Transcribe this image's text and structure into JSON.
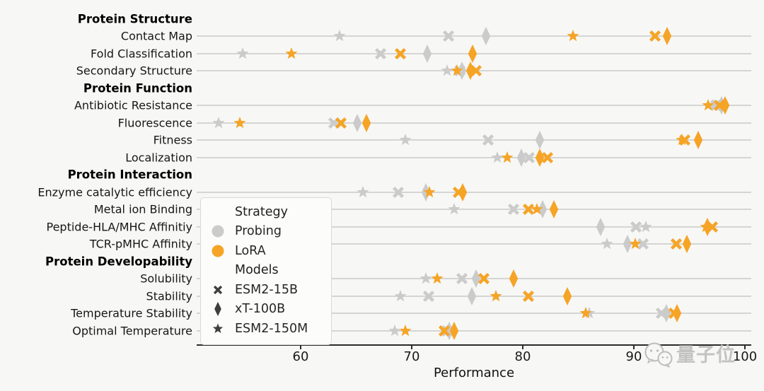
{
  "figure": {
    "background": "#f7f7f5",
    "watermark_text": "量子位"
  },
  "legend": {
    "strategy_title": "Strategy",
    "probing_label": "Probing",
    "lora_label": "LoRA",
    "models_title": "Models",
    "esm2_15b_label": "ESM2-15B",
    "xt_100b_label": "xT-100B",
    "esm2_150m_label": "ESM2-150M"
  },
  "chart_data": {
    "type": "scatter",
    "xlabel": "Performance",
    "x_ticks": [
      60,
      70,
      80,
      90,
      100
    ],
    "x_range": [
      50.6,
      100.7
    ],
    "grid": "horizontal-category-lines",
    "legend_position": "center-left",
    "strategies": [
      {
        "name": "Probing",
        "color": "#cbcbcb"
      },
      {
        "name": "LoRA",
        "color": "#f6a426"
      }
    ],
    "models": [
      {
        "name": "ESM2-15B",
        "marker": "x"
      },
      {
        "name": "xT-100B",
        "marker": "diamond"
      },
      {
        "name": "ESM2-150M",
        "marker": "star"
      }
    ],
    "rows": [
      {
        "label": "Protein Structure",
        "header": true
      },
      {
        "label": "Contact Map",
        "header": false,
        "probing": {
          "ESM2-15B": 73.3,
          "xT-100B": 76.7,
          "ESM2-150M": 63.5
        },
        "lora": {
          "ESM2-15B": 91.9,
          "xT-100B": 93.0,
          "ESM2-150M": 84.5
        }
      },
      {
        "label": "Fold Classification",
        "header": false,
        "probing": {
          "ESM2-15B": 67.2,
          "xT-100B": 71.4,
          "ESM2-150M": 54.8
        },
        "lora": {
          "ESM2-15B": 69.0,
          "xT-100B": 75.5,
          "ESM2-150M": 59.2
        }
      },
      {
        "label": "Secondary Structure",
        "header": false,
        "probing": {
          "ESM2-15B": 74.3,
          "xT-100B": 74.5,
          "ESM2-150M": 73.2
        },
        "lora": {
          "ESM2-15B": 75.8,
          "xT-100B": 75.3,
          "ESM2-150M": 74.1
        }
      },
      {
        "label": "Protein Function",
        "header": true
      },
      {
        "label": "Antibiotic Resistance",
        "header": false,
        "probing": {
          "ESM2-15B": 97.4,
          "xT-100B": 97.9,
          "ESM2-150M": 97.2
        },
        "lora": {
          "ESM2-15B": 97.7,
          "xT-100B": 98.2,
          "ESM2-150M": 96.7
        }
      },
      {
        "label": "Fluorescence",
        "header": false,
        "probing": {
          "ESM2-15B": 63.0,
          "xT-100B": 65.1,
          "ESM2-150M": 52.6
        },
        "lora": {
          "ESM2-15B": 63.6,
          "xT-100B": 65.9,
          "ESM2-150M": 54.5
        }
      },
      {
        "label": "Fitness",
        "header": false,
        "probing": {
          "ESM2-15B": 76.9,
          "xT-100B": 81.5,
          "ESM2-150M": 69.4
        },
        "lora": {
          "ESM2-15B": 94.6,
          "xT-100B": 95.8,
          "ESM2-150M": 94.3
        }
      },
      {
        "label": "Localization",
        "header": false,
        "probing": {
          "ESM2-15B": 80.6,
          "xT-100B": 79.9,
          "ESM2-150M": 77.7
        },
        "lora": {
          "ESM2-15B": 82.2,
          "xT-100B": 81.5,
          "ESM2-150M": 78.6
        }
      },
      {
        "label": "Protein Interaction",
        "header": true
      },
      {
        "label": "Enzyme catalytic efficiency",
        "header": false,
        "probing": {
          "ESM2-15B": 68.8,
          "xT-100B": 71.3,
          "ESM2-150M": 65.6
        },
        "lora": {
          "ESM2-15B": 74.2,
          "xT-100B": 74.6,
          "ESM2-150M": 71.6
        }
      },
      {
        "label": "Metal ion Binding",
        "header": false,
        "probing": {
          "ESM2-15B": 79.2,
          "xT-100B": 81.8,
          "ESM2-150M": 73.8
        },
        "lora": {
          "ESM2-15B": 80.5,
          "xT-100B": 82.8,
          "ESM2-150M": 81.3
        }
      },
      {
        "label": "Peptide-HLA/MHC Affinitiy",
        "header": false,
        "probing": {
          "ESM2-15B": 90.2,
          "xT-100B": 87.0,
          "ESM2-150M": 91.1
        },
        "lora": {
          "ESM2-15B": 97.1,
          "xT-100B": 96.6,
          "ESM2-150M": 96.5
        }
      },
      {
        "label": "TCR-pMHC Affinity",
        "header": false,
        "probing": {
          "ESM2-15B": 90.8,
          "xT-100B": 89.4,
          "ESM2-150M": 87.6
        },
        "lora": {
          "ESM2-15B": 93.8,
          "xT-100B": 94.8,
          "ESM2-150M": 90.1
        }
      },
      {
        "label": "Protein Developability",
        "header": true
      },
      {
        "label": "Solubility",
        "header": false,
        "probing": {
          "ESM2-15B": 74.5,
          "xT-100B": 75.8,
          "ESM2-150M": 71.3
        },
        "lora": {
          "ESM2-15B": 76.5,
          "xT-100B": 79.2,
          "ESM2-150M": 72.3
        }
      },
      {
        "label": "Stability",
        "header": false,
        "probing": {
          "ESM2-15B": 71.5,
          "xT-100B": 75.4,
          "ESM2-150M": 69.0
        },
        "lora": {
          "ESM2-15B": 80.5,
          "xT-100B": 84.0,
          "ESM2-150M": 77.6
        }
      },
      {
        "label": "Temperature Stability",
        "header": false,
        "probing": {
          "ESM2-15B": 92.5,
          "xT-100B": 92.9,
          "ESM2-150M": 86.0
        },
        "lora": {
          "ESM2-15B": 93.6,
          "xT-100B": 93.9,
          "ESM2-150M": 85.7
        }
      },
      {
        "label": "Optimal Temperature",
        "header": false,
        "probing": {
          "ESM2-15B": 73.2,
          "xT-100B": 73.4,
          "ESM2-150M": 68.5
        },
        "lora": {
          "ESM2-15B": 72.9,
          "xT-100B": 73.8,
          "ESM2-150M": 69.4
        }
      }
    ]
  }
}
